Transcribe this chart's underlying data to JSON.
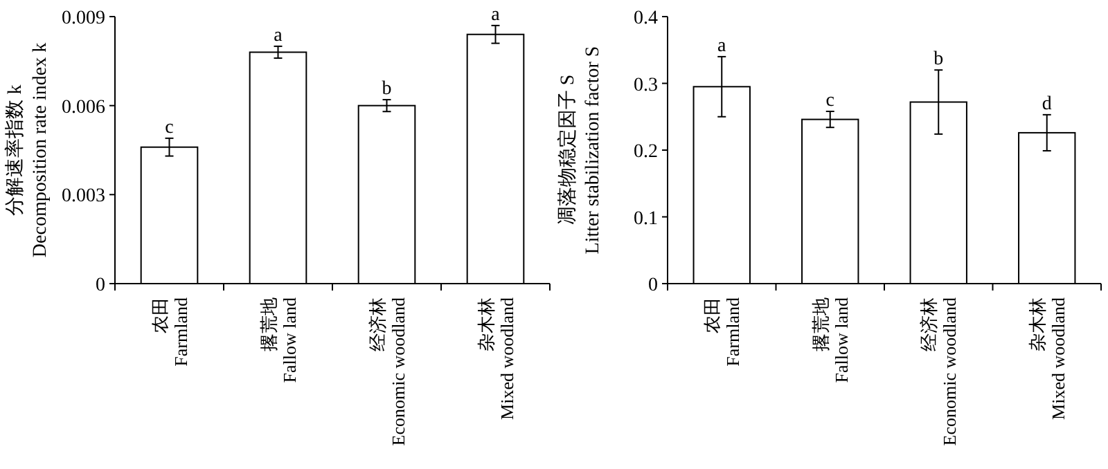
{
  "chart_data": [
    {
      "type": "bar",
      "ylabel": "分解速率指数 k\nDecomposition rate index k",
      "categories": [
        "农田\nFarmland",
        "撂荒地\nFallow land",
        "经济林\nEconomic woodland",
        "杂木林\nMixed woodland"
      ],
      "values": [
        0.0046,
        0.0078,
        0.006,
        0.0084
      ],
      "errors": [
        0.0003,
        0.0002,
        0.0002,
        0.0003
      ],
      "color": "#ffffff",
      "ylim": [
        0,
        0.009
      ],
      "yticks": [
        {
          "value": 0,
          "label": "0"
        },
        0.003,
        0.006,
        0.009
      ],
      "annotations": [
        {
          "text": "c",
          "x": "农田\nFarmland",
          "y": 0.0049
        },
        {
          "text": "a",
          "x": "撂荒地\nFallow land",
          "y": 0.008
        },
        {
          "text": "b",
          "x": "经济林\nEconomic woodland",
          "y": 0.0062
        },
        {
          "text": "a",
          "x": "杂木林\nMixed woodland",
          "y": 0.0087
        }
      ],
      "grid": false
    },
    {
      "type": "bar",
      "ylabel": "凋落物稳定因子 S\nLitter stabilization factor S",
      "categories": [
        "农田\nFarmland",
        "撂荒地\nFallow land",
        "经济林\nEconomic woodland",
        "杂木林\nMixed woodland"
      ],
      "values": [
        0.295,
        0.246,
        0.272,
        0.226
      ],
      "errors": [
        0.045,
        0.012,
        0.048,
        0.027
      ],
      "color": "#ffffff",
      "ylim": [
        0,
        0.4
      ],
      "yticks": [
        {
          "value": 0,
          "label": "0"
        },
        0.1,
        0.2,
        0.3,
        0.4
      ],
      "annotations": [
        {
          "text": "a",
          "x": "农田\nFarmland",
          "y": 0.34
        },
        {
          "text": "c",
          "x": "撂荒地\nFallow land",
          "y": 0.258
        },
        {
          "text": "b",
          "x": "经济林\nEconomic woodland",
          "y": 0.32
        },
        {
          "text": "d",
          "x": "杂木林\nMixed woodland",
          "y": 0.253
        }
      ],
      "grid": false
    }
  ]
}
